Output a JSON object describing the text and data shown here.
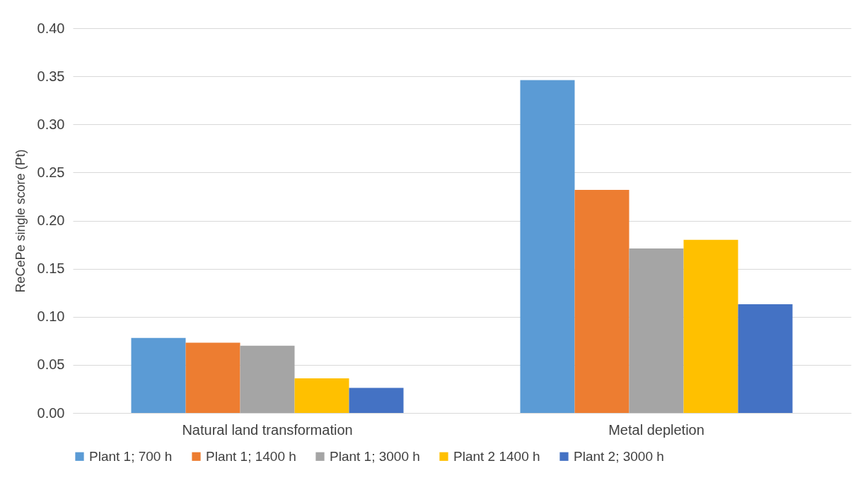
{
  "chart_data": {
    "type": "bar",
    "ylabel": "ReCePe single score (Pt)",
    "categories": [
      "Natural land transformation",
      "Metal depletion"
    ],
    "series": [
      {
        "name": "Plant 1; 700 h",
        "color": "#5b9bd5",
        "values": [
          0.078,
          0.346
        ]
      },
      {
        "name": "Plant 1; 1400 h",
        "color": "#ed7d31",
        "values": [
          0.073,
          0.232
        ]
      },
      {
        "name": "Plant 1; 3000 h",
        "color": "#a5a5a5",
        "values": [
          0.07,
          0.171
        ]
      },
      {
        "name": "Plant 2 1400 h",
        "color": "#ffc000",
        "values": [
          0.036,
          0.18
        ]
      },
      {
        "name": "Plant 2; 3000 h",
        "color": "#4472c4",
        "values": [
          0.026,
          0.113
        ]
      }
    ],
    "ylim": [
      0,
      0.4
    ],
    "yticks": [
      {
        "value": 0,
        "label": "0.00"
      },
      {
        "value": 0.05,
        "label": "0.05"
      },
      {
        "value": 0.1,
        "label": "0.10"
      },
      {
        "value": 0.15,
        "label": "0.15"
      },
      {
        "value": 0.2,
        "label": "0.20"
      },
      {
        "value": 0.25,
        "label": "0.25"
      },
      {
        "value": 0.3,
        "label": "0.30"
      },
      {
        "value": 0.35,
        "label": "0.35"
      },
      {
        "value": 0.4,
        "label": "0.40"
      }
    ],
    "grid": "y",
    "legend": "bottom"
  }
}
